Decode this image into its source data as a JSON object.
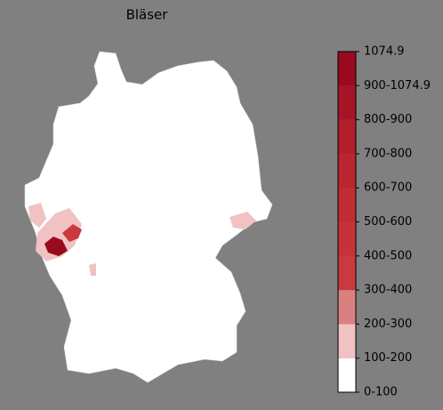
{
  "chart_data": {
    "type": "choropleth",
    "title": "Bläser",
    "colorbar": {
      "ticks": [
        {
          "value": 0,
          "label": "0-100"
        },
        {
          "value": 100,
          "label": "100-200"
        },
        {
          "value": 200,
          "label": "200-300"
        },
        {
          "value": 300,
          "label": "300-400"
        },
        {
          "value": 400,
          "label": "400-500"
        },
        {
          "value": 500,
          "label": "500-600"
        },
        {
          "value": 600,
          "label": "600-700"
        },
        {
          "value": 700,
          "label": "700-800"
        },
        {
          "value": 800,
          "label": "800-900"
        },
        {
          "value": 900,
          "label": "900-1074.9"
        },
        1074.9
      ],
      "colors": [
        "#ffffff",
        "#f0c2c2",
        "#db8080",
        "#c9393d",
        "#c53338",
        "#bf2d33",
        "#b9262f",
        "#b11e2a",
        "#a71425",
        "#990a1e"
      ]
    }
  }
}
